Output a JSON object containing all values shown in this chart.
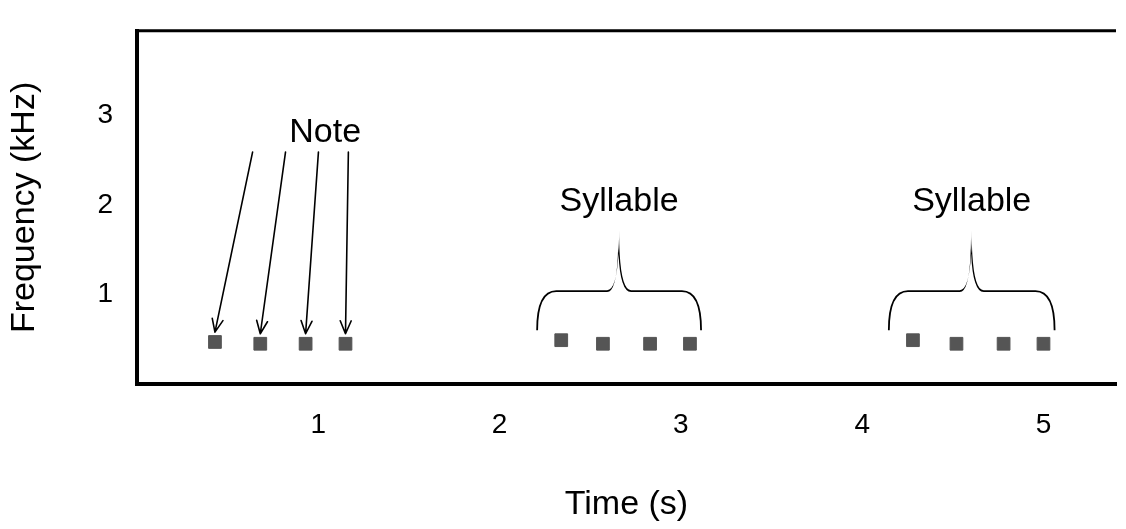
{
  "chart_data": {
    "type": "scatter",
    "xlabel": "Time (s)",
    "ylabel": "Frequency (kHz)",
    "xlim": [
      0,
      5.4
    ],
    "ylim": [
      0,
      3.95
    ],
    "xticks": [
      1,
      2,
      3,
      4,
      5
    ],
    "yticks": [
      1,
      2,
      3
    ],
    "grid": false,
    "legend": false,
    "marker": "square",
    "series": [
      {
        "color": "#555555",
        "x": [
          0.43,
          0.68,
          0.93,
          1.15
        ],
        "values": [
          0.47,
          0.45,
          0.45,
          0.45
        ]
      },
      {
        "color": "#555555",
        "x": [
          2.34,
          2.57,
          2.83,
          3.05
        ],
        "values": [
          0.49,
          0.45,
          0.45,
          0.45
        ]
      },
      {
        "color": "#555555",
        "x": [
          4.28,
          4.52,
          4.78,
          5.0
        ],
        "values": [
          0.49,
          0.45,
          0.45,
          0.45
        ]
      }
    ],
    "annotations": [
      {
        "text": "Note",
        "x": 0.43,
        "y": 0.58
      },
      "Syllable",
      "Syllable"
    ]
  }
}
